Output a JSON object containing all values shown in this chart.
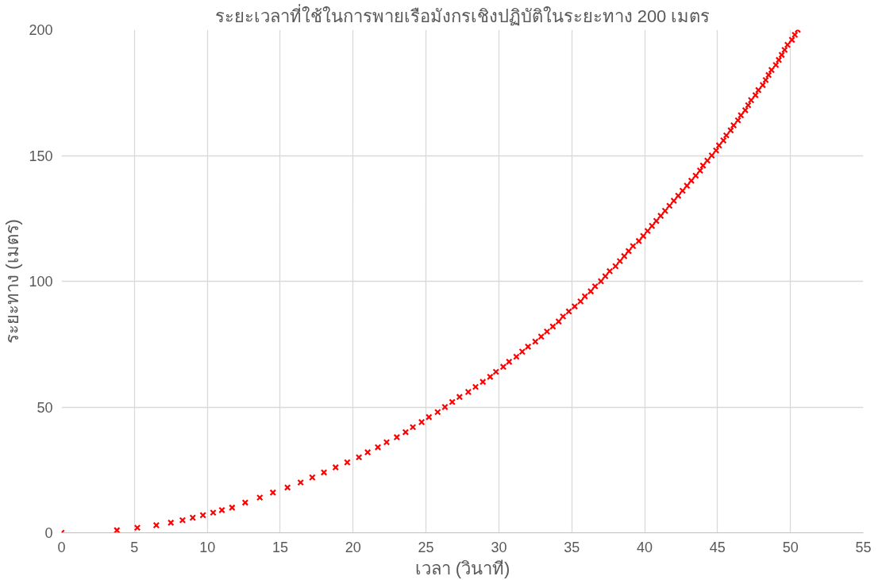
{
  "chart_data": {
    "type": "scatter",
    "title": "ระยะเวลาที่ใช้ในการพายเรือมังกรเชิงปฏิบัติในระยะทาง 200 เมตร",
    "xlabel": "เวลา (วินาที)",
    "ylabel": "ระยะทาง (เมตร)",
    "x": [
      0,
      3.8,
      5.2,
      6.5,
      7.5,
      8.3,
      9.0,
      9.7,
      10.4,
      11.0,
      11.7,
      12.6,
      13.6,
      14.5,
      15.5,
      16.4,
      17.2,
      18.0,
      18.8,
      19.6,
      20.4,
      21.0,
      21.7,
      22.3,
      23.0,
      23.6,
      24.1,
      24.7,
      25.2,
      25.8,
      26.3,
      26.8,
      27.3,
      27.9,
      28.4,
      28.9,
      29.4,
      29.8,
      30.3,
      30.7,
      31.2,
      31.6,
      32.0,
      32.5,
      32.9,
      33.3,
      33.7,
      34.1,
      34.4,
      34.8,
      35.2,
      35.6,
      35.9,
      36.3,
      36.6,
      37.0,
      37.3,
      37.6,
      38.0,
      38.3,
      38.6,
      38.9,
      39.2,
      39.6,
      39.9,
      40.2,
      40.5,
      40.8,
      41.1,
      41.4,
      41.7,
      42.0,
      42.3,
      42.6,
      42.9,
      43.2,
      43.5,
      43.8,
      44.0,
      44.3,
      44.6,
      44.9,
      45.1,
      45.4,
      45.6,
      45.9,
      46.1,
      46.4,
      46.6,
      46.9,
      47.1,
      47.3,
      47.6,
      47.8,
      48.1,
      48.3,
      48.5,
      48.7,
      49.0,
      49.2,
      49.4,
      49.6,
      49.8,
      50.1,
      50.3,
      50.5
    ],
    "series": [
      {
        "color": "#ff0000",
        "values": [
          0,
          1,
          2,
          3,
          4,
          5,
          6,
          7,
          8,
          9,
          10,
          12,
          14,
          16,
          18,
          20,
          22,
          24,
          26,
          28,
          30,
          32,
          34,
          36,
          38,
          40,
          42,
          44,
          46,
          48,
          50,
          52,
          54,
          56,
          58,
          60,
          62,
          64,
          66,
          68,
          70,
          72,
          74,
          76,
          78,
          80,
          82,
          84,
          86,
          88,
          90,
          92,
          94,
          96,
          98,
          100,
          102,
          104,
          106,
          108,
          110,
          112,
          114,
          116,
          118,
          120,
          122,
          124,
          126,
          128,
          130,
          132,
          134,
          136,
          138,
          140,
          142,
          144,
          146,
          148,
          150,
          152,
          154,
          156,
          158,
          160,
          162,
          164,
          166,
          168,
          170,
          172,
          174,
          176,
          178,
          180,
          182,
          184,
          186,
          188,
          190,
          192,
          194,
          196,
          198,
          200
        ]
      }
    ],
    "xlim": [
      0,
      55
    ],
    "ylim": [
      0,
      200
    ],
    "xticks": [
      0,
      5,
      10,
      15,
      20,
      25,
      30,
      35,
      40,
      45,
      50,
      55
    ],
    "yticks": [
      0,
      50,
      100,
      150,
      200
    ],
    "grid": true,
    "marker": "cross"
  }
}
